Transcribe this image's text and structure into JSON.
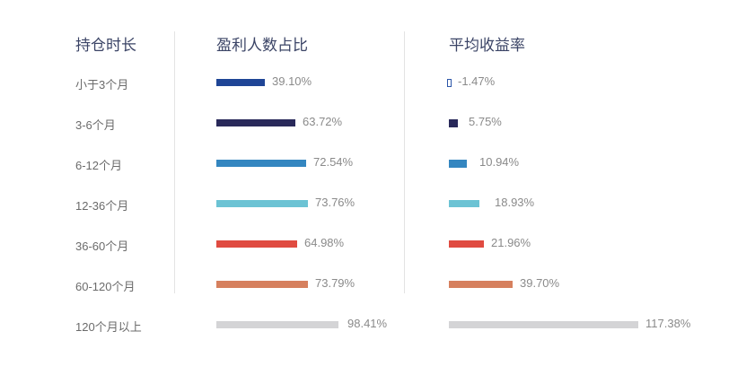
{
  "headers": {
    "duration": "持仓时长",
    "profit_ratio": "盈利人数占比",
    "avg_return": "平均收益率"
  },
  "rows": [
    {
      "label": "小于3个月",
      "profit_ratio": "39.10%",
      "avg_return": "-1.47%",
      "color": "#1f4596"
    },
    {
      "label": "3-6个月",
      "profit_ratio": "63.72%",
      "avg_return": "5.75%",
      "color": "#29295a"
    },
    {
      "label": "6-12个月",
      "profit_ratio": "72.54%",
      "avg_return": "10.94%",
      "color": "#3486c0"
    },
    {
      "label": "12-36个月",
      "profit_ratio": "73.76%",
      "avg_return": "18.93%",
      "color": "#6cc3d4"
    },
    {
      "label": "36-60个月",
      "profit_ratio": "64.98%",
      "avg_return": "21.96%",
      "color": "#e04b41"
    },
    {
      "label": "60-120个月",
      "profit_ratio": "73.79%",
      "avg_return": "39.70%",
      "color": "#d6805e"
    },
    {
      "label": "120个月以上",
      "profit_ratio": "98.41%",
      "avg_return": "117.38%",
      "color": "#d4d4d6"
    }
  ],
  "chart_data": {
    "type": "bar",
    "orientation": "horizontal",
    "categories": [
      "小于3个月",
      "3-6个月",
      "6-12个月",
      "12-36个月",
      "36-60个月",
      "60-120个月",
      "120个月以上"
    ],
    "series": [
      {
        "name": "盈利人数占比",
        "values": [
          39.1,
          63.72,
          72.54,
          73.76,
          64.98,
          73.79,
          98.41
        ],
        "unit": "%"
      },
      {
        "name": "平均收益率",
        "values": [
          -1.47,
          5.75,
          10.94,
          18.93,
          21.96,
          39.7,
          117.38
        ],
        "unit": "%"
      }
    ],
    "colors": [
      "#1f4596",
      "#29295a",
      "#3486c0",
      "#6cc3d4",
      "#e04b41",
      "#d6805e",
      "#d4d4d6"
    ],
    "column_headers": [
      "持仓时长",
      "盈利人数占比",
      "平均收益率"
    ],
    "grid": false,
    "legend": false
  }
}
